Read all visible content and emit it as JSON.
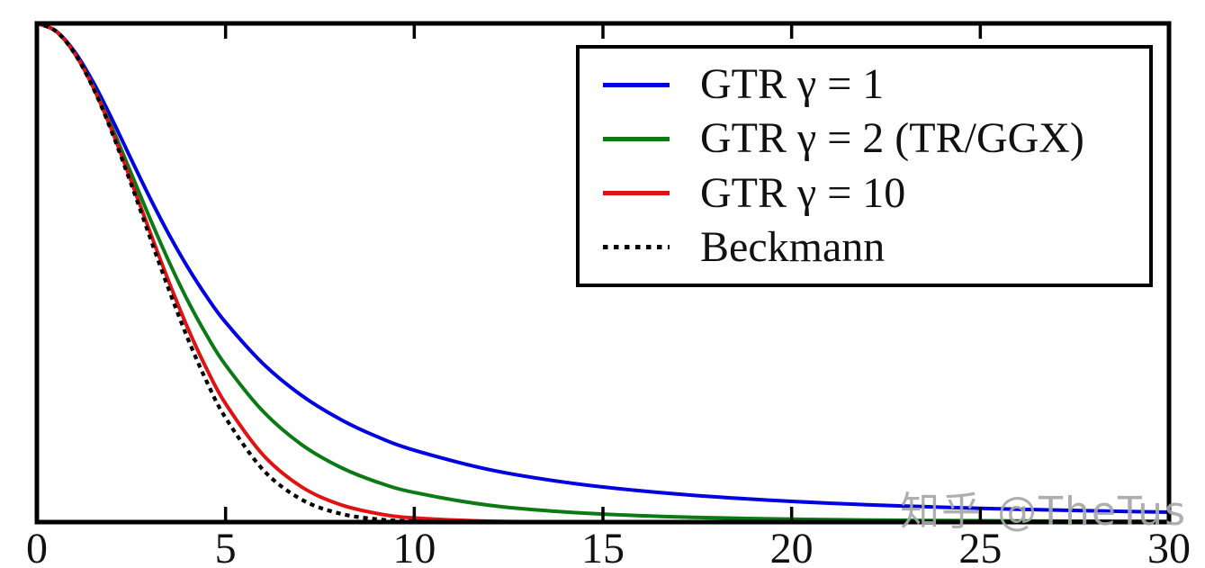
{
  "watermark": {
    "text": "知乎 @TheTus",
    "color": "#a8a8a8"
  },
  "chart_data": {
    "type": "line",
    "title": "",
    "xlabel": "",
    "ylabel": "",
    "xlim": [
      0,
      30
    ],
    "ylim": [
      0,
      1
    ],
    "grid": false,
    "legend_position": "upper right",
    "xticks": [
      0,
      5,
      10,
      15,
      20,
      25,
      30
    ],
    "xtick_labels": [
      "0",
      "5",
      "10",
      "15",
      "20",
      "25",
      "30"
    ],
    "yticks": [],
    "frame_color": "#000000",
    "x": [
      0,
      0.5,
      1,
      1.5,
      2,
      2.5,
      3,
      3.5,
      4,
      4.5,
      5,
      6,
      7,
      8,
      9,
      10,
      12,
      14,
      16,
      18,
      20,
      22,
      24,
      26,
      28,
      30
    ],
    "series": [
      {
        "id": "gtr-gamma-1",
        "name": "GTR γ = 1",
        "color": "#0000e0",
        "style": "solid",
        "values": [
          1,
          0.9852,
          0.9434,
          0.8811,
          0.8065,
          0.7274,
          0.6495,
          0.5766,
          0.5106,
          0.4519,
          0.4006,
          0.3172,
          0.2547,
          0.2077,
          0.1718,
          0.1441,
          0.1051,
          0.0798,
          0.0626,
          0.0505,
          0.0416,
          0.0349,
          0.0298,
          0.0257,
          0.0225,
          0.0199
        ]
      },
      {
        "id": "gtr-gamma-2-tr-ggx",
        "name": "GTR γ = 2 (TR/GGX)",
        "color": "#0c7a14",
        "style": "solid",
        "values": [
          1,
          0.9845,
          0.9401,
          0.8724,
          0.7894,
          0.6991,
          0.6083,
          0.5221,
          0.4437,
          0.3745,
          0.3148,
          0.2214,
          0.1562,
          0.1115,
          0.0807,
          0.0593,
          0.0336,
          0.0202,
          0.0128,
          0.0085,
          0.0059,
          0.0042,
          0.0031,
          0.0023,
          0.0018,
          0.0014
        ]
      },
      {
        "id": "gtr-gamma-10",
        "name": "GTR γ = 10",
        "color": "#e01212",
        "style": "solid",
        "values": [
          1,
          0.9846,
          0.94,
          0.8706,
          0.7827,
          0.6838,
          0.5812,
          0.4813,
          0.3888,
          0.3071,
          0.2374,
          0.1342,
          0.0713,
          0.0361,
          0.0175,
          0.0083,
          0.0018,
          0.0004,
          0.0001,
          0,
          0,
          0,
          0,
          0,
          0,
          0
        ]
      },
      {
        "id": "beckmann",
        "name": "Beckmann",
        "color": "#000000",
        "style": "dotted",
        "values": [
          1,
          0.9845,
          0.9396,
          0.8692,
          0.7793,
          0.6772,
          0.5702,
          0.4653,
          0.3679,
          0.2818,
          0.209,
          0.1044,
          0.0458,
          0.0176,
          0.0059,
          0.0017,
          0.0001,
          0,
          0,
          0,
          0,
          0,
          0,
          0,
          0,
          0
        ]
      }
    ]
  }
}
